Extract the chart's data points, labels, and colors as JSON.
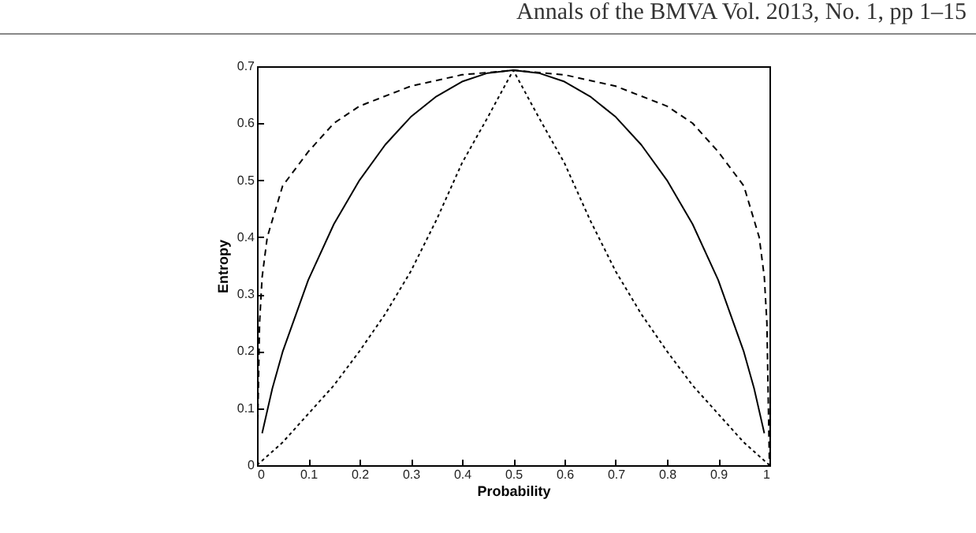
{
  "chart_data": {
    "type": "line",
    "xlabel": "Probability",
    "ylabel": "Entropy",
    "annotations": [
      "Annals of the BMVA Vol. 2013, No. 1, pp 1–15"
    ],
    "xlim": [
      0,
      1
    ],
    "ylim": [
      0,
      0.7
    ],
    "xticks": [
      0,
      0.1,
      0.2,
      0.3,
      0.4,
      0.5,
      0.6,
      0.7,
      0.8,
      0.9,
      1
    ],
    "yticks": [
      0,
      0.1,
      0.2,
      0.3,
      0.4,
      0.5,
      0.6,
      0.7
    ],
    "grid": false,
    "legend": false,
    "marker": "none",
    "series": [
      {
        "color": "#000000",
        "line_style": "solid",
        "x": [
          0.01,
          0.03,
          0.05,
          0.1,
          0.15,
          0.2,
          0.25,
          0.3,
          0.35,
          0.4,
          0.45,
          0.5,
          0.55,
          0.6,
          0.65,
          0.7,
          0.75,
          0.8,
          0.85,
          0.9,
          0.95,
          0.97,
          0.99
        ],
        "values": [
          0.056,
          0.135,
          0.199,
          0.325,
          0.423,
          0.5,
          0.562,
          0.611,
          0.647,
          0.673,
          0.688,
          0.693,
          0.688,
          0.673,
          0.647,
          0.611,
          0.562,
          0.5,
          0.423,
          0.325,
          0.199,
          0.135,
          0.056
        ]
      },
      {
        "color": "#000000",
        "line_style": "dashed",
        "x": [
          0,
          0.005,
          0.01,
          0.02,
          0.05,
          0.1,
          0.15,
          0.2,
          0.3,
          0.4,
          0.5,
          0.6,
          0.7,
          0.8,
          0.85,
          0.9,
          0.95,
          0.98,
          0.99,
          0.995,
          1
        ],
        "values": [
          0,
          0.25,
          0.33,
          0.4,
          0.49,
          0.55,
          0.6,
          0.63,
          0.665,
          0.685,
          0.693,
          0.685,
          0.665,
          0.63,
          0.6,
          0.55,
          0.49,
          0.4,
          0.33,
          0.25,
          0
        ]
      },
      {
        "color": "#000000",
        "line_style": "dotted",
        "x": [
          0,
          0.05,
          0.1,
          0.15,
          0.2,
          0.25,
          0.3,
          0.35,
          0.4,
          0.45,
          0.5,
          0.55,
          0.6,
          0.65,
          0.7,
          0.75,
          0.8,
          0.85,
          0.9,
          0.95,
          1
        ],
        "values": [
          0,
          0.04,
          0.09,
          0.14,
          0.2,
          0.265,
          0.34,
          0.43,
          0.53,
          0.61,
          0.693,
          0.61,
          0.53,
          0.43,
          0.34,
          0.265,
          0.2,
          0.14,
          0.09,
          0.04,
          0
        ]
      }
    ]
  }
}
